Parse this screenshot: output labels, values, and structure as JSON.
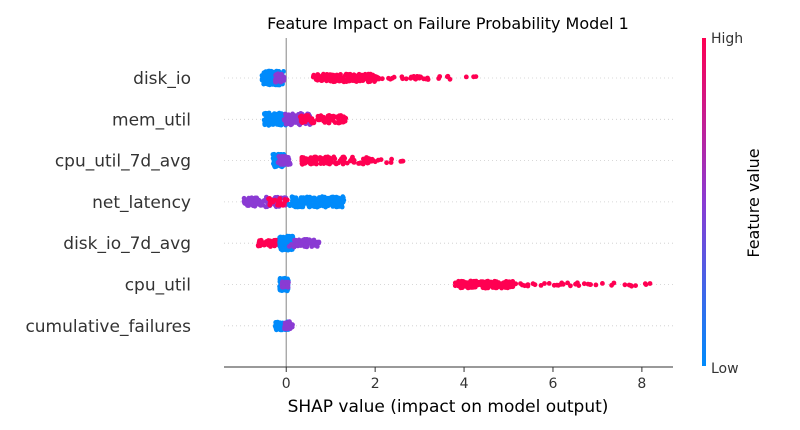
{
  "chart_data": {
    "type": "scatter",
    "subtype": "shap-beeswarm",
    "title": "Feature Impact on Failure Probability Model 1",
    "xlabel": "SHAP value (impact on model output)",
    "xlim": [
      -1.4,
      8.7
    ],
    "xticks": [
      0,
      2,
      4,
      6,
      8
    ],
    "zero_line": true,
    "colorbar": {
      "label": "Feature value",
      "high": "High",
      "low": "Low",
      "color_low": "#008bfb",
      "color_mid": "#8a3bd3",
      "color_high": "#ff0052"
    },
    "features": [
      {
        "name": "disk_io",
        "clusters": [
          {
            "from": -0.55,
            "to": -0.05,
            "color": "low",
            "spread": 1.0,
            "count": 140
          },
          {
            "from": -0.25,
            "to": -0.05,
            "color": "mid",
            "spread": 0.6,
            "count": 40
          },
          {
            "from": 0.6,
            "to": 2.0,
            "color": "high",
            "spread": 0.55,
            "count": 170
          },
          {
            "from": 2.0,
            "to": 4.7,
            "color": "high",
            "spread": 0.25,
            "count": 45
          }
        ]
      },
      {
        "name": "mem_util",
        "clusters": [
          {
            "from": -0.5,
            "to": 0.0,
            "color": "low",
            "spread": 0.9,
            "count": 130
          },
          {
            "from": -0.05,
            "to": 0.55,
            "color": "mid",
            "spread": 0.85,
            "count": 70
          },
          {
            "from": 0.3,
            "to": 1.35,
            "color": "high",
            "spread": 0.55,
            "count": 80
          }
        ]
      },
      {
        "name": "cpu_util_7d_avg",
        "clusters": [
          {
            "from": -0.3,
            "to": -0.05,
            "color": "low",
            "spread": 0.9,
            "count": 130
          },
          {
            "from": -0.2,
            "to": 0.1,
            "color": "mid",
            "spread": 0.6,
            "count": 30
          },
          {
            "from": 0.35,
            "to": 1.9,
            "color": "high",
            "spread": 0.55,
            "count": 120
          },
          {
            "from": 1.9,
            "to": 2.7,
            "color": "high",
            "spread": 0.3,
            "count": 12
          }
        ]
      },
      {
        "name": "net_latency",
        "clusters": [
          {
            "from": -0.95,
            "to": 0.0,
            "color": "mid",
            "spread": 0.7,
            "count": 90
          },
          {
            "from": -0.4,
            "to": 0.05,
            "color": "high",
            "spread": 0.5,
            "count": 25
          },
          {
            "from": 0.05,
            "to": 1.3,
            "color": "low",
            "spread": 0.75,
            "count": 160
          }
        ]
      },
      {
        "name": "disk_io_7d_avg",
        "clusters": [
          {
            "from": -0.65,
            "to": 0.0,
            "color": "high",
            "spread": 0.5,
            "count": 60
          },
          {
            "from": -0.15,
            "to": 0.15,
            "color": "low",
            "spread": 1.0,
            "count": 150
          },
          {
            "from": 0.05,
            "to": 0.75,
            "color": "mid",
            "spread": 0.55,
            "count": 60
          }
        ]
      },
      {
        "name": "cpu_util",
        "clusters": [
          {
            "from": -0.15,
            "to": 0.05,
            "color": "low",
            "spread": 0.9,
            "count": 100
          },
          {
            "from": -0.1,
            "to": 0.05,
            "color": "mid",
            "spread": 0.5,
            "count": 20
          },
          {
            "from": 3.8,
            "to": 5.1,
            "color": "high",
            "spread": 0.5,
            "count": 150
          },
          {
            "from": 5.1,
            "to": 8.2,
            "color": "high",
            "spread": 0.25,
            "count": 40
          }
        ]
      },
      {
        "name": "cumulative_failures",
        "clusters": [
          {
            "from": -0.25,
            "to": 0.05,
            "color": "low",
            "spread": 0.6,
            "count": 50
          },
          {
            "from": -0.05,
            "to": 0.15,
            "color": "mid",
            "spread": 0.6,
            "count": 30
          }
        ]
      }
    ]
  }
}
